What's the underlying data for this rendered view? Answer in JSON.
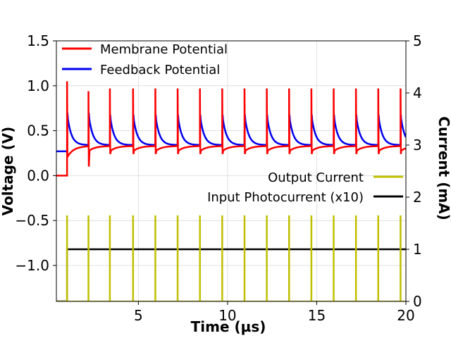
{
  "chart_data": {
    "type": "line",
    "title": "",
    "xlabel": "Time (µs)",
    "ylabel_left": "Voltage (V)",
    "ylabel_right": "Current (mA)",
    "xlim": [
      0.4,
      20
    ],
    "ylim_left": [
      -1.4,
      1.5
    ],
    "ylim_right": [
      0,
      5
    ],
    "grid": true,
    "x_ticks": [
      5,
      10,
      15,
      20
    ],
    "y_ticks_left": [
      1.5,
      1.0,
      0.5,
      0.0,
      -0.5,
      -1.0
    ],
    "y_tick_labels_left": [
      "1.5",
      "1.0",
      "0.5",
      "0.0",
      "−0.5",
      "−1.0"
    ],
    "y_ticks_right": [
      5,
      4,
      3,
      2,
      1,
      0
    ],
    "spike_times": [
      1.0,
      2.2,
      3.4,
      4.7,
      5.95,
      7.2,
      8.45,
      9.7,
      10.95,
      12.2,
      13.45,
      14.7,
      15.95,
      17.2,
      18.45,
      19.7
    ],
    "series": [
      {
        "name": "Membrane Potential",
        "axis": "left",
        "color": "#ff0000",
        "baseline_before_input": 0.0,
        "resting_level": 0.33,
        "spike_peaks": [
          1.05,
          0.94,
          0.97,
          0.97,
          0.97,
          0.97,
          0.97,
          0.97,
          0.97,
          0.97,
          0.97,
          0.97,
          0.97,
          0.97,
          0.97,
          0.97
        ],
        "reset_min": 0.24
      },
      {
        "name": "Feedback Potential",
        "axis": "left",
        "color": "#0000ee",
        "baseline_before_input": 0.27,
        "resting_level": 0.34,
        "spike_peaks": [
          0.7,
          0.7,
          0.68,
          0.68,
          0.68,
          0.68,
          0.68,
          0.68,
          0.68,
          0.68,
          0.68,
          0.68,
          0.68,
          0.68,
          0.68,
          0.68
        ]
      },
      {
        "name": "Output Current",
        "axis": "right",
        "color": "#bfbf00",
        "baseline": 0,
        "pulse_height": 1.65
      },
      {
        "name": "Input Photocurrent (x10)",
        "axis": "right",
        "color": "#000000",
        "step_time": 1.0,
        "level_before": 0,
        "level_after": 1.0
      }
    ],
    "legend_upper": [
      "Membrane Potential",
      "Feedback Potential"
    ],
    "legend_lower": [
      "Output Current",
      "Input Photocurrent (x10)"
    ],
    "legend_upper_placement": "upper-left",
    "legend_lower_placement": "center-right"
  }
}
